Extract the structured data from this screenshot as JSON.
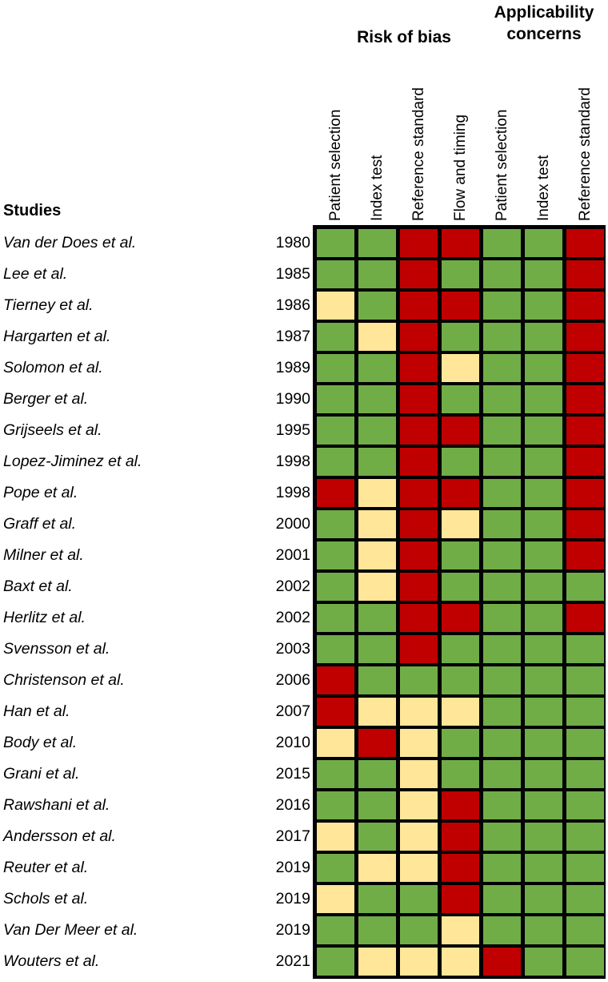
{
  "chart_data": {
    "type": "table",
    "title": "",
    "groups": [
      {
        "label": "Risk of bias",
        "columns": [
          0,
          1,
          2,
          3
        ]
      },
      {
        "label": "Applicability concerns",
        "columns": [
          4,
          5,
          6
        ]
      }
    ],
    "columns": [
      "Patient selection",
      "Index test",
      "Reference standard",
      "Flow and timing",
      "Patient selection",
      "Index test",
      "Reference standard"
    ],
    "row_header": "Studies",
    "legend": {
      "low": "#70ad47",
      "unclear": "#ffe699",
      "high": "#c00000"
    },
    "colors": {
      "low": "#70ad47",
      "unclear": "#ffe699",
      "high": "#c00000"
    },
    "rows": [
      {
        "study": "Van der Does et al.",
        "year": "1980",
        "ratings": [
          "low",
          "low",
          "high",
          "high",
          "low",
          "low",
          "high"
        ]
      },
      {
        "study": "Lee et al.",
        "year": "1985",
        "ratings": [
          "low",
          "low",
          "high",
          "low",
          "low",
          "low",
          "high"
        ]
      },
      {
        "study": "Tierney et al.",
        "year": "1986",
        "ratings": [
          "unclear",
          "low",
          "high",
          "high",
          "low",
          "low",
          "high"
        ]
      },
      {
        "study": "Hargarten et al.",
        "year": "1987",
        "ratings": [
          "low",
          "unclear",
          "high",
          "low",
          "low",
          "low",
          "high"
        ]
      },
      {
        "study": "Solomon et al.",
        "year": "1989",
        "ratings": [
          "low",
          "low",
          "high",
          "unclear",
          "low",
          "low",
          "high"
        ]
      },
      {
        "study": "Berger et al.",
        "year": "1990",
        "ratings": [
          "low",
          "low",
          "high",
          "low",
          "low",
          "low",
          "high"
        ]
      },
      {
        "study": "Grijseels et al.",
        "year": "1995",
        "ratings": [
          "low",
          "low",
          "high",
          "high",
          "low",
          "low",
          "high"
        ]
      },
      {
        "study": "Lopez-Jiminez et al.",
        "year": "1998",
        "ratings": [
          "low",
          "low",
          "high",
          "low",
          "low",
          "low",
          "high"
        ]
      },
      {
        "study": "Pope et al.",
        "year": "1998",
        "ratings": [
          "high",
          "unclear",
          "high",
          "high",
          "low",
          "low",
          "high"
        ]
      },
      {
        "study": "Graff et al.",
        "year": "2000",
        "ratings": [
          "low",
          "unclear",
          "high",
          "unclear",
          "low",
          "low",
          "high"
        ]
      },
      {
        "study": "Milner et al.",
        "year": "2001",
        "ratings": [
          "low",
          "unclear",
          "high",
          "low",
          "low",
          "low",
          "high"
        ]
      },
      {
        "study": "Baxt et al.",
        "year": "2002",
        "ratings": [
          "low",
          "unclear",
          "high",
          "low",
          "low",
          "low",
          "low"
        ]
      },
      {
        "study": "Herlitz et al.",
        "year": "2002",
        "ratings": [
          "low",
          "low",
          "high",
          "high",
          "low",
          "low",
          "high"
        ]
      },
      {
        "study": "Svensson et al.",
        "year": "2003",
        "ratings": [
          "low",
          "low",
          "high",
          "low",
          "low",
          "low",
          "low"
        ]
      },
      {
        "study": "Christenson et al.",
        "year": "2006",
        "ratings": [
          "high",
          "low",
          "low",
          "low",
          "low",
          "low",
          "low"
        ]
      },
      {
        "study": "Han et al.",
        "year": "2007",
        "ratings": [
          "high",
          "unclear",
          "unclear",
          "unclear",
          "low",
          "low",
          "low"
        ]
      },
      {
        "study": "Body et al.",
        "year": "2010",
        "ratings": [
          "unclear",
          "high",
          "unclear",
          "low",
          "low",
          "low",
          "low"
        ]
      },
      {
        "study": "Grani et al.",
        "year": "2015",
        "ratings": [
          "low",
          "low",
          "unclear",
          "low",
          "low",
          "low",
          "low"
        ]
      },
      {
        "study": "Rawshani et al.",
        "year": "2016",
        "ratings": [
          "low",
          "low",
          "unclear",
          "high",
          "low",
          "low",
          "low"
        ]
      },
      {
        "study": "Andersson et al.",
        "year": "2017",
        "ratings": [
          "unclear",
          "low",
          "unclear",
          "high",
          "low",
          "low",
          "low"
        ]
      },
      {
        "study": "Reuter et al.",
        "year": "2019",
        "ratings": [
          "low",
          "unclear",
          "unclear",
          "high",
          "low",
          "low",
          "low"
        ]
      },
      {
        "study": "Schols et al.",
        "year": "2019",
        "ratings": [
          "unclear",
          "low",
          "low",
          "high",
          "low",
          "low",
          "low"
        ]
      },
      {
        "study": "Van Der Meer et al.",
        "year": "2019",
        "ratings": [
          "low",
          "low",
          "low",
          "unclear",
          "low",
          "low",
          "low"
        ]
      },
      {
        "study": "Wouters et al.",
        "year": "2021",
        "ratings": [
          "low",
          "unclear",
          "unclear",
          "unclear",
          "high",
          "low",
          "low"
        ]
      }
    ]
  }
}
